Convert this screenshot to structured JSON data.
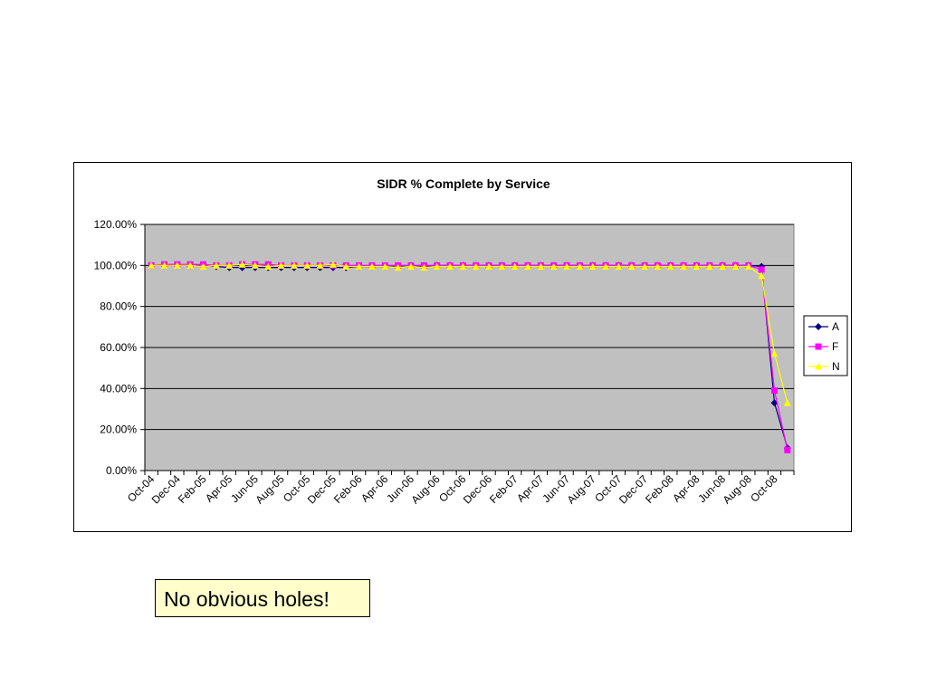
{
  "chart_data": {
    "type": "line",
    "title": "SIDR % Complete by Service",
    "xlabel": "",
    "ylabel": "",
    "ylim": [
      0,
      120
    ],
    "y_ticks": [
      "0.00%",
      "20.00%",
      "40.00%",
      "60.00%",
      "80.00%",
      "100.00%",
      "120.00%"
    ],
    "x_tick_labels": [
      "Oct-04",
      "Dec-04",
      "Feb-05",
      "Apr-05",
      "Jun-05",
      "Aug-05",
      "Oct-05",
      "Dec-05",
      "Feb-06",
      "Apr-06",
      "Jun-06",
      "Aug-06",
      "Oct-06",
      "Dec-06",
      "Feb-07",
      "Apr-07",
      "Jun-07",
      "Aug-07",
      "Oct-07",
      "Dec-07",
      "Feb-08",
      "Apr-08",
      "Jun-08",
      "Aug-08",
      "Oct-08"
    ],
    "x": [
      "Oct-04",
      "Nov-04",
      "Dec-04",
      "Jan-05",
      "Feb-05",
      "Mar-05",
      "Apr-05",
      "May-05",
      "Jun-05",
      "Jul-05",
      "Aug-05",
      "Sep-05",
      "Oct-05",
      "Nov-05",
      "Dec-05",
      "Jan-06",
      "Feb-06",
      "Mar-06",
      "Apr-06",
      "May-06",
      "Jun-06",
      "Jul-06",
      "Aug-06",
      "Sep-06",
      "Oct-06",
      "Nov-06",
      "Dec-06",
      "Jan-07",
      "Feb-07",
      "Mar-07",
      "Apr-07",
      "May-07",
      "Jun-07",
      "Jul-07",
      "Aug-07",
      "Sep-07",
      "Oct-07",
      "Nov-07",
      "Dec-07",
      "Jan-08",
      "Feb-08",
      "Mar-08",
      "Apr-08",
      "May-08",
      "Jun-08",
      "Jul-08",
      "Aug-08",
      "Sep-08",
      "Oct-08",
      "Nov-08"
    ],
    "grid": true,
    "legend_position": "right",
    "plot_background": "#c0c0c0",
    "series": [
      {
        "name": "A",
        "color": "#000080",
        "marker": "diamond",
        "values": [
          100,
          100,
          100,
          100,
          100,
          99.5,
          99,
          99,
          99,
          99,
          99,
          99,
          99,
          99,
          99,
          99,
          99.5,
          99.5,
          99.5,
          99.5,
          100,
          99.5,
          100,
          100,
          100,
          100,
          100,
          100,
          100,
          100,
          100,
          100,
          100,
          100,
          100,
          100,
          100,
          100,
          100,
          100,
          100,
          100,
          100,
          100,
          100,
          100,
          100,
          99.5,
          33,
          11
        ]
      },
      {
        "name": "F",
        "color": "#ff00ff",
        "marker": "square",
        "values": [
          100,
          100.5,
          100.5,
          100.5,
          100.5,
          100,
          100,
          100.5,
          100.5,
          100.5,
          100,
          100,
          100,
          100,
          100,
          100,
          100,
          100,
          100,
          100,
          100,
          100,
          100,
          100,
          100,
          100,
          100,
          100,
          100,
          100,
          100,
          100,
          100,
          100,
          100,
          100,
          100,
          100,
          100,
          100,
          100,
          100,
          100,
          100,
          100,
          100,
          100,
          98,
          39,
          10
        ]
      },
      {
        "name": "N",
        "color": "#ffff00",
        "marker": "triangle",
        "values": [
          100,
          100,
          100,
          100,
          99.5,
          100,
          100,
          100.5,
          100,
          99.5,
          100,
          100,
          100,
          100,
          100.5,
          99.5,
          99.5,
          99.5,
          99.5,
          99,
          99.5,
          99,
          99.5,
          99.5,
          99.5,
          99.5,
          99.5,
          99.5,
          99.5,
          99.5,
          99.5,
          99.5,
          99.5,
          99.5,
          99.5,
          99.5,
          99.5,
          99.5,
          99.5,
          99.5,
          99.5,
          99.5,
          99.5,
          99.5,
          99.5,
          99.5,
          99.5,
          95,
          57,
          33
        ]
      }
    ]
  },
  "callout": {
    "text": "No obvious holes!"
  }
}
